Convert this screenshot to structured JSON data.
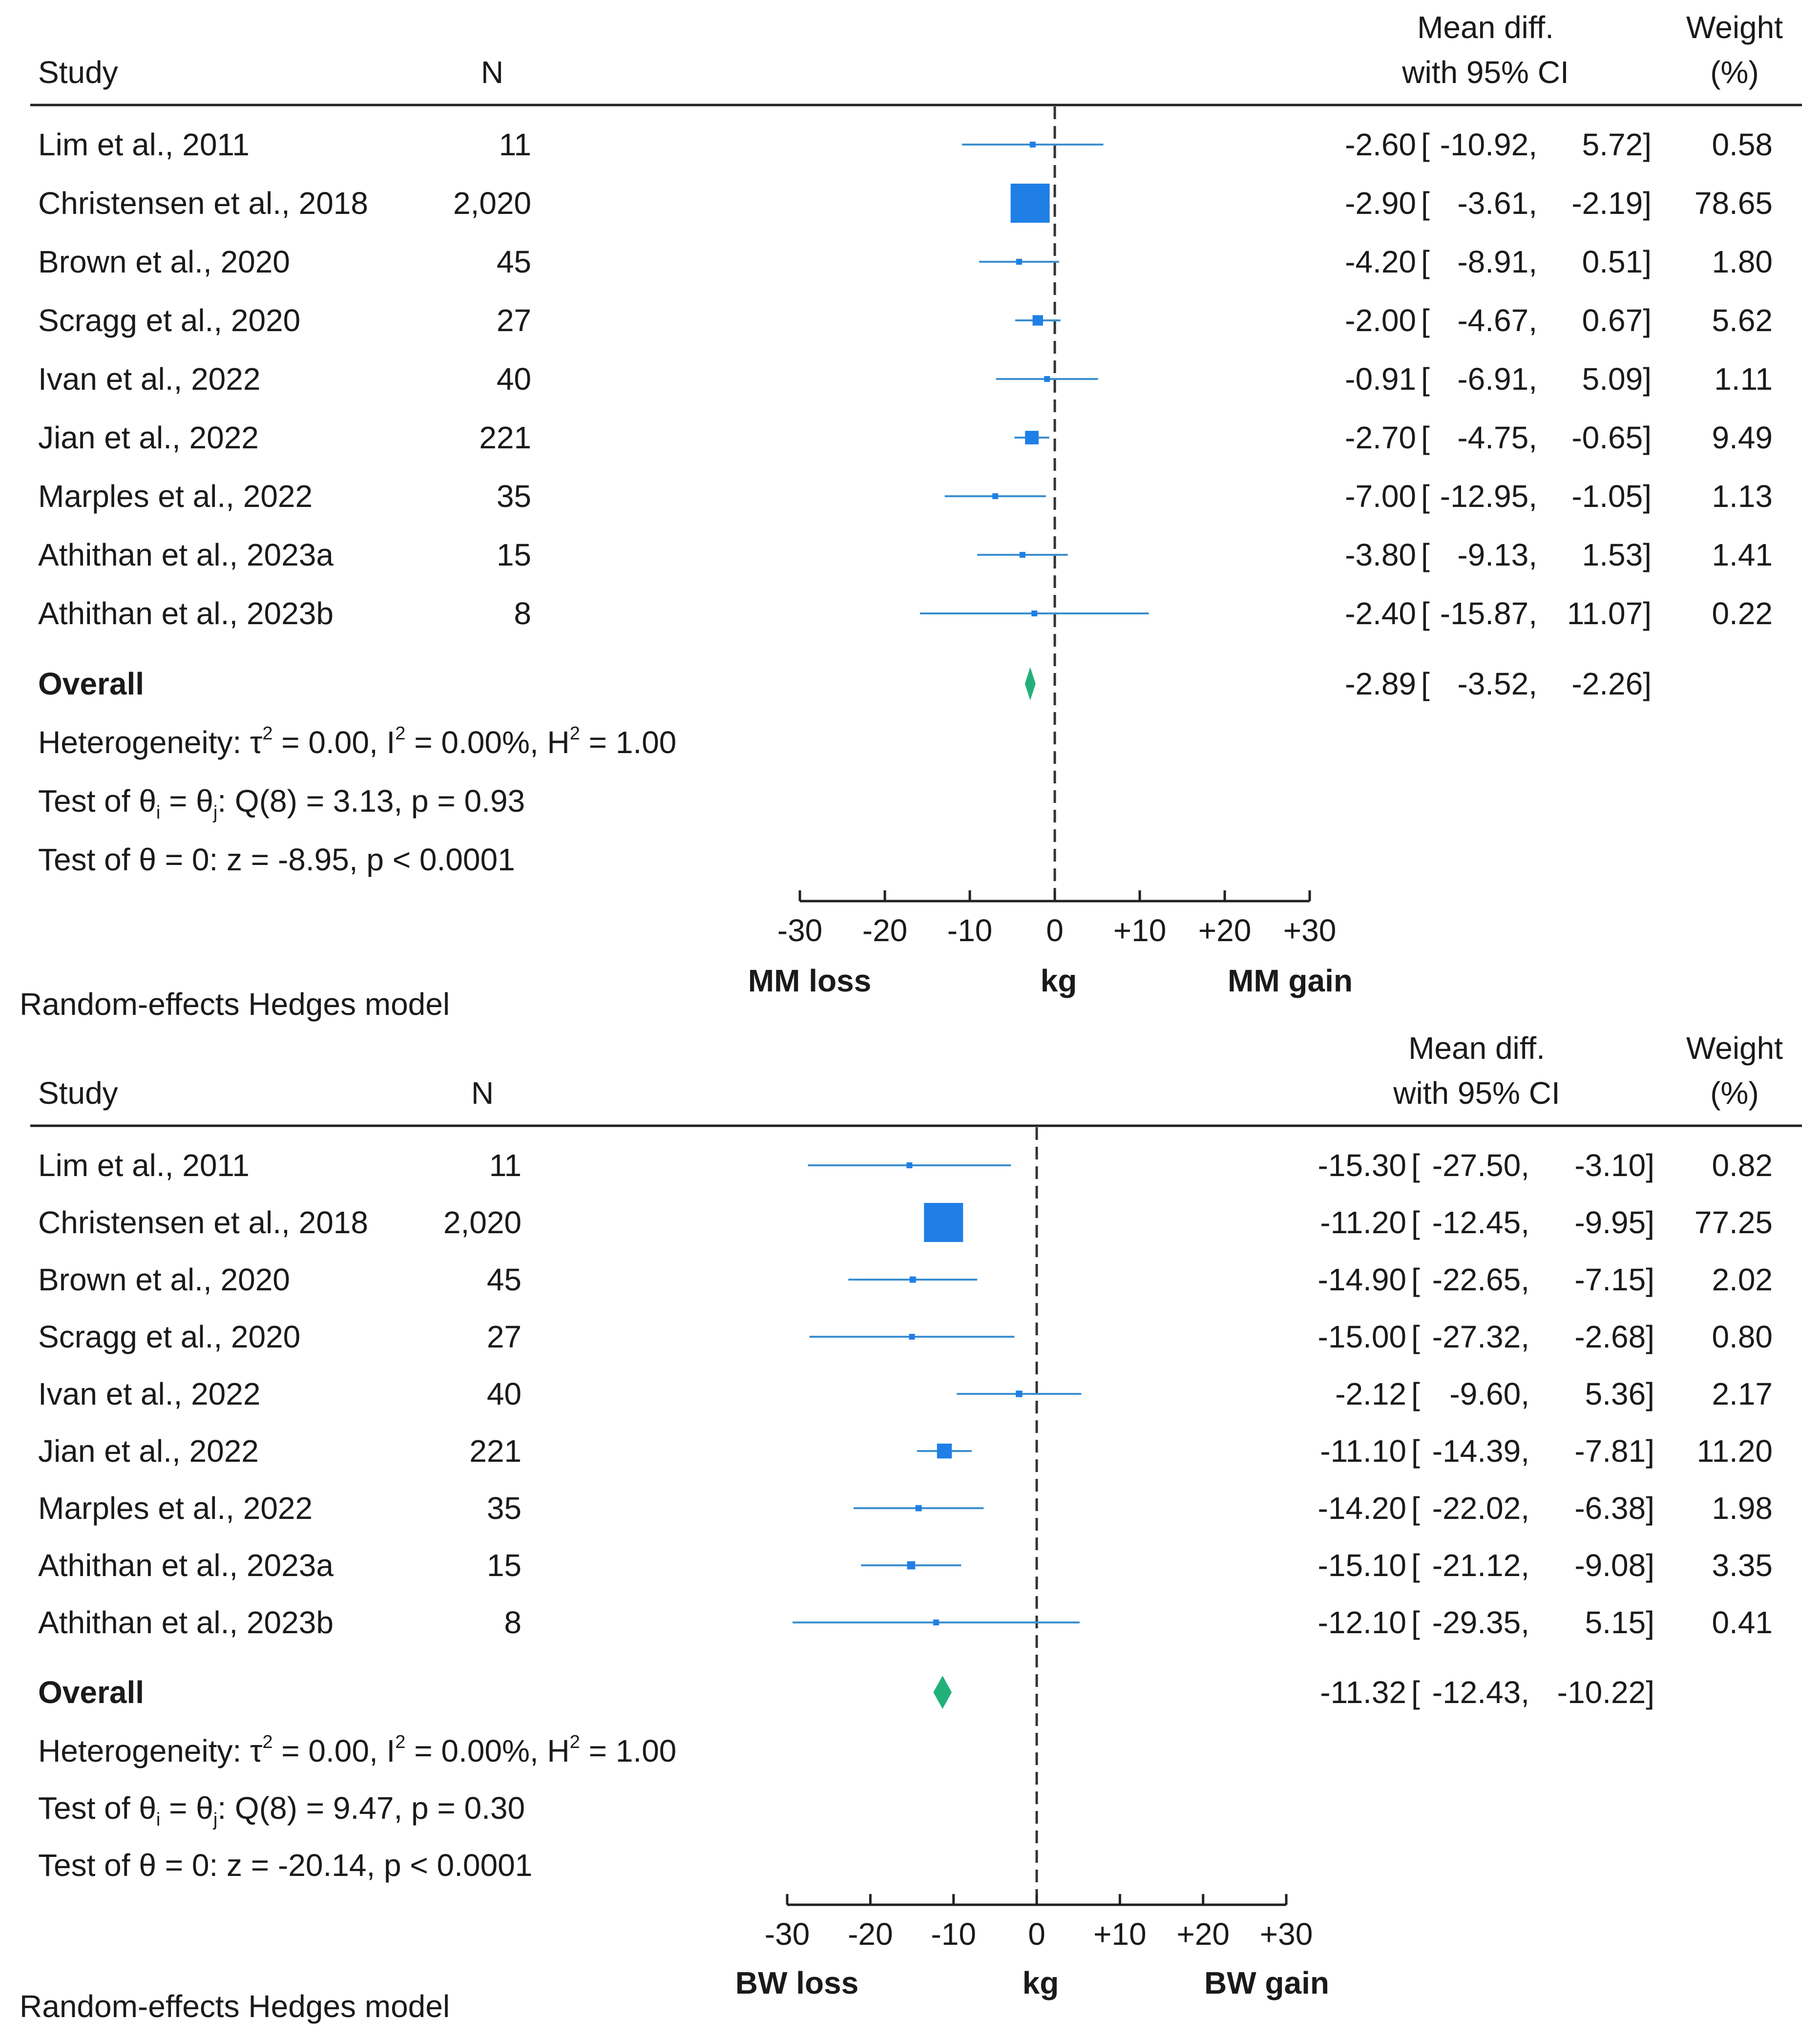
{
  "chart_data": [
    {
      "type": "forest",
      "headers": {
        "study": "Study",
        "n": "N",
        "effect_line1": "Mean diff.",
        "effect_line2": "with 95% CI",
        "weight_line1": "Weight",
        "weight_line2": "(%)"
      },
      "studies": [
        {
          "name": "Lim et al., 2011",
          "n": "11",
          "mean": -2.6,
          "lo": -10.92,
          "hi": 5.72,
          "mean_text": "-2.60",
          "lo_text": "-10.92,",
          "hi_text": "5.72]",
          "weight": 0.58,
          "weight_text": "0.58"
        },
        {
          "name": "Christensen et al., 2018",
          "n": "2,020",
          "mean": -2.9,
          "lo": -3.61,
          "hi": -2.19,
          "mean_text": "-2.90",
          "lo_text": "-3.61,",
          "hi_text": "-2.19]",
          "weight": 78.65,
          "weight_text": "78.65"
        },
        {
          "name": "Brown et al., 2020",
          "n": "45",
          "mean": -4.2,
          "lo": -8.91,
          "hi": 0.51,
          "mean_text": "-4.20",
          "lo_text": "-8.91,",
          "hi_text": "0.51]",
          "weight": 1.8,
          "weight_text": "1.80"
        },
        {
          "name": "Scragg et al., 2020",
          "n": "27",
          "mean": -2.0,
          "lo": -4.67,
          "hi": 0.67,
          "mean_text": "-2.00",
          "lo_text": "-4.67,",
          "hi_text": "0.67]",
          "weight": 5.62,
          "weight_text": "5.62"
        },
        {
          "name": "Ivan et al., 2022",
          "n": "40",
          "mean": -0.91,
          "lo": -6.91,
          "hi": 5.09,
          "mean_text": "-0.91",
          "lo_text": "-6.91,",
          "hi_text": "5.09]",
          "weight": 1.11,
          "weight_text": "1.11"
        },
        {
          "name": "Jian et al., 2022",
          "n": "221",
          "mean": -2.7,
          "lo": -4.75,
          "hi": -0.65,
          "mean_text": "-2.70",
          "lo_text": "-4.75,",
          "hi_text": "-0.65]",
          "weight": 9.49,
          "weight_text": "9.49"
        },
        {
          "name": "Marples et al., 2022",
          "n": "35",
          "mean": -7.0,
          "lo": -12.95,
          "hi": -1.05,
          "mean_text": "-7.00",
          "lo_text": "-12.95,",
          "hi_text": "-1.05]",
          "weight": 1.13,
          "weight_text": "1.13"
        },
        {
          "name": "Athithan et al., 2023a",
          "n": "15",
          "mean": -3.8,
          "lo": -9.13,
          "hi": 1.53,
          "mean_text": "-3.80",
          "lo_text": "-9.13,",
          "hi_text": "1.53]",
          "weight": 1.41,
          "weight_text": "1.41"
        },
        {
          "name": "Athithan et al., 2023b",
          "n": "8",
          "mean": -2.4,
          "lo": -15.87,
          "hi": 11.07,
          "mean_text": "-2.40",
          "lo_text": "-15.87,",
          "hi_text": "11.07]",
          "weight": 0.22,
          "weight_text": "0.22"
        }
      ],
      "overall": {
        "label": "Overall",
        "mean": -2.89,
        "lo": -3.52,
        "hi": -2.26,
        "mean_text": "-2.89",
        "lo_text": "-3.52,",
        "hi_text": "-2.26]"
      },
      "stats": {
        "heterogeneity": {
          "a": "Heterogeneity: τ",
          "b": " = 0.00, I",
          "c": " = 0.00%, H",
          "d": " = 1.00"
        },
        "q_test": {
          "a": "Test of θ",
          "b": " = θ",
          "c": ": Q(8) = 3.13, p = 0.93"
        },
        "z_test": "Test of θ = 0: z = -8.95, p < 0.0001"
      },
      "x_ticks": [
        {
          "value": -30,
          "label": "-30"
        },
        {
          "value": -20,
          "label": "-20"
        },
        {
          "value": -10,
          "label": "-10"
        },
        {
          "value": 0,
          "label": "0"
        },
        {
          "value": 10,
          "label": "+10"
        },
        {
          "value": 20,
          "label": "+20"
        },
        {
          "value": 30,
          "label": "+30"
        }
      ],
      "xlim": [
        -30,
        30
      ],
      "xlabel": {
        "left": "MM loss",
        "center": "kg",
        "right": "MM gain"
      },
      "footnote": "Random-effects Hedges model",
      "colors": {
        "study": "#1f7fe6",
        "ci": "#3c8fd0",
        "overall": "#22b07a",
        "text": "#1a1a1a"
      }
    },
    {
      "type": "forest",
      "headers": {
        "study": "Study",
        "n": "N",
        "effect_line1": "Mean diff.",
        "effect_line2": "with 95% CI",
        "weight_line1": "Weight",
        "weight_line2": "(%)"
      },
      "studies": [
        {
          "name": "Lim et al., 2011",
          "n": "11",
          "mean": -15.3,
          "lo": -27.5,
          "hi": -3.1,
          "mean_text": "-15.30",
          "lo_text": "-27.50,",
          "hi_text": "-3.10]",
          "weight": 0.82,
          "weight_text": "0.82"
        },
        {
          "name": "Christensen et al., 2018",
          "n": "2,020",
          "mean": -11.2,
          "lo": -12.45,
          "hi": -9.95,
          "mean_text": "-11.20",
          "lo_text": "-12.45,",
          "hi_text": "-9.95]",
          "weight": 77.25,
          "weight_text": "77.25"
        },
        {
          "name": "Brown et al., 2020",
          "n": "45",
          "mean": -14.9,
          "lo": -22.65,
          "hi": -7.15,
          "mean_text": "-14.90",
          "lo_text": "-22.65,",
          "hi_text": "-7.15]",
          "weight": 2.02,
          "weight_text": "2.02"
        },
        {
          "name": "Scragg et al., 2020",
          "n": "27",
          "mean": -15.0,
          "lo": -27.32,
          "hi": -2.68,
          "mean_text": "-15.00",
          "lo_text": "-27.32,",
          "hi_text": "-2.68]",
          "weight": 0.8,
          "weight_text": "0.80"
        },
        {
          "name": "Ivan et al., 2022",
          "n": "40",
          "mean": -2.12,
          "lo": -9.6,
          "hi": 5.36,
          "mean_text": "-2.12",
          "lo_text": "-9.60,",
          "hi_text": "5.36]",
          "weight": 2.17,
          "weight_text": "2.17"
        },
        {
          "name": "Jian et al., 2022",
          "n": "221",
          "mean": -11.1,
          "lo": -14.39,
          "hi": -7.81,
          "mean_text": "-11.10",
          "lo_text": "-14.39,",
          "hi_text": "-7.81]",
          "weight": 11.2,
          "weight_text": "11.20"
        },
        {
          "name": "Marples et al., 2022",
          "n": "35",
          "mean": -14.2,
          "lo": -22.02,
          "hi": -6.38,
          "mean_text": "-14.20",
          "lo_text": "-22.02,",
          "hi_text": "-6.38]",
          "weight": 1.98,
          "weight_text": "1.98"
        },
        {
          "name": "Athithan et al., 2023a",
          "n": "15",
          "mean": -15.1,
          "lo": -21.12,
          "hi": -9.08,
          "mean_text": "-15.10",
          "lo_text": "-21.12,",
          "hi_text": "-9.08]",
          "weight": 3.35,
          "weight_text": "3.35"
        },
        {
          "name": "Athithan et al., 2023b",
          "n": "8",
          "mean": -12.1,
          "lo": -29.35,
          "hi": 5.15,
          "mean_text": "-12.10",
          "lo_text": "-29.35,",
          "hi_text": "5.15]",
          "weight": 0.41,
          "weight_text": "0.41"
        }
      ],
      "overall": {
        "label": "Overall",
        "mean": -11.32,
        "lo": -12.43,
        "hi": -10.22,
        "mean_text": "-11.32",
        "lo_text": "-12.43,",
        "hi_text": "-10.22]"
      },
      "stats": {
        "heterogeneity": {
          "a": "Heterogeneity: τ",
          "b": " = 0.00, I",
          "c": " = 0.00%, H",
          "d": " = 1.00"
        },
        "q_test": {
          "a": "Test of θ",
          "b": " = θ",
          "c": ": Q(8) = 9.47, p = 0.30"
        },
        "z_test": "Test of θ = 0: z = -20.14, p < 0.0001"
      },
      "x_ticks": [
        {
          "value": -30,
          "label": "-30"
        },
        {
          "value": -20,
          "label": "-20"
        },
        {
          "value": -10,
          "label": "-10"
        },
        {
          "value": 0,
          "label": "0"
        },
        {
          "value": 10,
          "label": "+10"
        },
        {
          "value": 20,
          "label": "+20"
        },
        {
          "value": 30,
          "label": "+30"
        }
      ],
      "xlim": [
        -30,
        30
      ],
      "xlabel": {
        "left": "BW loss",
        "center": "kg",
        "right": "BW gain"
      },
      "footnote": "Random-effects Hedges model",
      "colors": {
        "study": "#1f7fe6",
        "ci": "#3c8fd0",
        "overall": "#22b07a",
        "text": "#1a1a1a"
      }
    }
  ]
}
